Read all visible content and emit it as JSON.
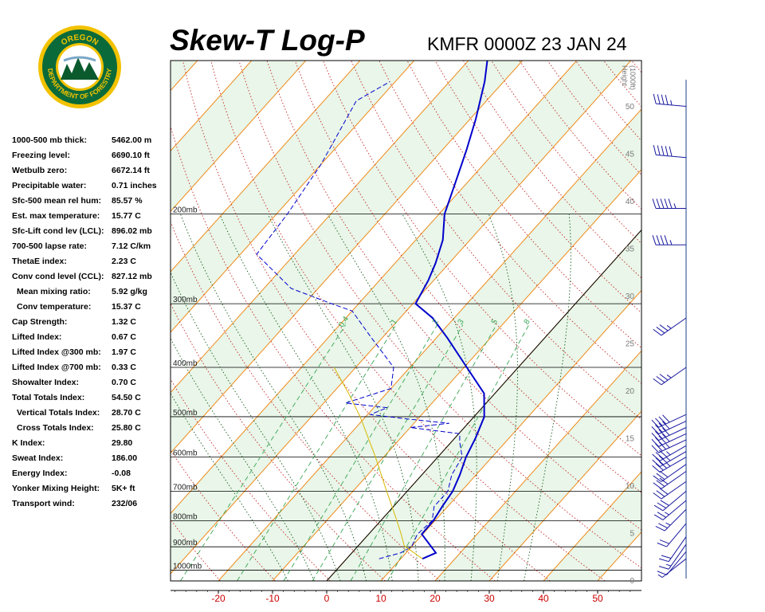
{
  "header": {
    "title": "Skew-T Log-P",
    "subtitle": "KMFR 0000Z 23 JAN 24"
  },
  "logo": {
    "text_top": "OREGON",
    "text_bottom": "DEPARTMENT OF FORESTRY",
    "colors": {
      "ring": "#0b6a3a",
      "gold": "#f2c200",
      "tree": "#0b5a2e"
    }
  },
  "indices": [
    {
      "label": "1000-500 mb thick:",
      "value": "5462.00 m",
      "indent": false
    },
    {
      "label": "Freezing level:",
      "value": "6690.10 ft",
      "indent": false
    },
    {
      "label": "Wetbulb zero:",
      "value": "6672.14 ft",
      "indent": false
    },
    {
      "label": "Precipitable water:",
      "value": "0.71 inches",
      "indent": false
    },
    {
      "label": "Sfc-500 mean rel hum:",
      "value": "85.57 %",
      "indent": false
    },
    {
      "label": "Est. max temperature:",
      "value": "15.77 C",
      "indent": false
    },
    {
      "label": "Sfc-Lift cond lev (LCL):",
      "value": "896.02 mb",
      "indent": false
    },
    {
      "label": "700-500 lapse rate:",
      "value": "7.12 C/km",
      "indent": false
    },
    {
      "label": "ThetaE index:",
      "value": "2.23 C",
      "indent": false
    },
    {
      "label": "Conv cond level (CCL):",
      "value": "827.12 mb",
      "indent": false
    },
    {
      "label": "Mean mixing ratio:",
      "value": "5.92 g/kg",
      "indent": true
    },
    {
      "label": "Conv temperature:",
      "value": "15.37 C",
      "indent": true
    },
    {
      "label": "Cap Strength:",
      "value": "1.32 C",
      "indent": false
    },
    {
      "label": "Lifted Index:",
      "value": "0.67 C",
      "indent": false
    },
    {
      "label": "Lifted Index @300 mb:",
      "value": "1.97 C",
      "indent": false
    },
    {
      "label": "Lifted Index @700 mb:",
      "value": "0.33 C",
      "indent": false
    },
    {
      "label": "Showalter Index:",
      "value": "0.70 C",
      "indent": false
    },
    {
      "label": "Total Totals Index:",
      "value": "54.50 C",
      "indent": false
    },
    {
      "label": "Vertical Totals Index:",
      "value": "28.70 C",
      "indent": true
    },
    {
      "label": "Cross Totals Index:",
      "value": "25.80 C",
      "indent": true
    },
    {
      "label": "K Index:",
      "value": "29.80",
      "indent": false
    },
    {
      "label": "Sweat Index:",
      "value": "186.00",
      "indent": false
    },
    {
      "label": "Energy Index:",
      "value": "-0.08",
      "indent": false
    },
    {
      "label": "Yonker Mixing Height:",
      "value": "5K+ ft",
      "indent": false
    },
    {
      "label": "Transport wind:",
      "value": "232/06",
      "indent": false
    }
  ],
  "chart_data": {
    "type": "line",
    "title": "Skew-T Log-P",
    "subtitle": "KMFR 0000Z 23 JAN 24",
    "x_axis": {
      "label": "",
      "ticks": [
        -20,
        -10,
        0,
        10,
        20,
        30,
        40,
        50
      ],
      "range": [
        -30,
        56
      ],
      "tick_color": "#cc0000"
    },
    "y_axis": {
      "label": "",
      "scale": "log",
      "range_mb": [
        1050,
        100
      ],
      "ticks": [
        1000,
        900,
        800,
        700,
        600,
        500,
        400,
        300,
        200
      ],
      "tick_labels": [
        "1000mb",
        "900mb",
        "800mb",
        "700mb",
        "600mb",
        "500mb",
        "400mb",
        "300mb",
        "200mb"
      ]
    },
    "height_axis": {
      "label": "Height (1000ft)",
      "label_lines": [
        "Height",
        "(1000ft)"
      ],
      "ticks": [
        0,
        5,
        10,
        15,
        20,
        25,
        30,
        35,
        40,
        45,
        50
      ],
      "tick_labels": [
        "0",
        "5",
        "10",
        "15",
        "20",
        "25",
        "30",
        "35",
        "40",
        "45",
        "50"
      ]
    },
    "mixing_ratio_labels": [
      "0.4",
      "1",
      "2",
      "3",
      "5",
      "8"
    ],
    "mixing_ratio_values": [
      0.4,
      1,
      2,
      3,
      5,
      8
    ],
    "background": {
      "isotherm_interval_c": 10,
      "dry_adiabats_theta_k": [
        250,
        260,
        270,
        280,
        290,
        300,
        310,
        320,
        330,
        340,
        350,
        360,
        370,
        380,
        390,
        400,
        410,
        420,
        430,
        440,
        450,
        460,
        470
      ],
      "moist_adiabats_theta_w_c": [
        -10,
        -5,
        0,
        5,
        10,
        15,
        20,
        25,
        30,
        35
      ],
      "freezing_isotherm_c": 0
    },
    "series": [
      {
        "role": "temperature",
        "color": "#0000cc",
        "style": "solid",
        "points": [
          [
            950,
            14.0
          ],
          [
            925,
            15.5
          ],
          [
            850,
            9.8
          ],
          [
            800,
            9.7
          ],
          [
            750,
            9.0
          ],
          [
            700,
            8.4
          ],
          [
            650,
            7.0
          ],
          [
            600,
            5.2
          ],
          [
            550,
            3.8
          ],
          [
            500,
            1.9
          ],
          [
            450,
            -2.0
          ],
          [
            400,
            -9.5
          ],
          [
            350,
            -18.0
          ],
          [
            320,
            -24.0
          ],
          [
            300,
            -29.5
          ],
          [
            270,
            -31.0
          ],
          [
            250,
            -32.5
          ],
          [
            225,
            -35.0
          ],
          [
            200,
            -39.0
          ],
          [
            175,
            -42.0
          ],
          [
            150,
            -45.5
          ],
          [
            130,
            -49.0
          ],
          [
            110,
            -53.5
          ],
          [
            100,
            -56.5
          ]
        ]
      },
      {
        "role": "dewpoint",
        "color": "#0000cc",
        "style": "dashed",
        "points": [
          [
            950,
            6.0
          ],
          [
            925,
            9.0
          ],
          [
            900,
            10.0
          ],
          [
            850,
            9.0
          ],
          [
            800,
            9.5
          ],
          [
            750,
            7.5
          ],
          [
            700,
            7.5
          ],
          [
            650,
            5.5
          ],
          [
            600,
            4.5
          ],
          [
            560,
            1.5
          ],
          [
            540,
            0.2
          ],
          [
            525,
            -10.0
          ],
          [
            515,
            -3.5
          ],
          [
            505,
            -12.0
          ],
          [
            495,
            -19.5
          ],
          [
            480,
            -17.5
          ],
          [
            470,
            -26.0
          ],
          [
            440,
            -20.0
          ],
          [
            400,
            -23.0
          ],
          [
            350,
            -32.0
          ],
          [
            310,
            -40.0
          ],
          [
            300,
            -45.0
          ],
          [
            280,
            -55.0
          ],
          [
            240,
            -67.0
          ],
          [
            200,
            -68.0
          ],
          [
            160,
            -70.0
          ],
          [
            120,
            -74.0
          ],
          [
            110,
            -71.0
          ]
        ]
      },
      {
        "role": "parcel",
        "color": "#d8b800",
        "style": "solid",
        "points": [
          [
            950,
            14.0
          ],
          [
            896,
            8.5
          ],
          [
            850,
            6.0
          ],
          [
            800,
            3.0
          ],
          [
            700,
            -3.8
          ],
          [
            600,
            -11.5
          ],
          [
            500,
            -21.0
          ],
          [
            450,
            -27.0
          ],
          [
            400,
            -34.0
          ]
        ]
      }
    ],
    "wind_barbs": [
      {
        "p": 950,
        "dir": 232,
        "spd": 6
      },
      {
        "p": 920,
        "dir": 220,
        "spd": 10
      },
      {
        "p": 890,
        "dir": 215,
        "spd": 15
      },
      {
        "p": 860,
        "dir": 215,
        "spd": 20
      },
      {
        "p": 810,
        "dir": 220,
        "spd": 20
      },
      {
        "p": 760,
        "dir": 225,
        "spd": 25
      },
      {
        "p": 730,
        "dir": 230,
        "spd": 25
      },
      {
        "p": 700,
        "dir": 230,
        "spd": 30
      },
      {
        "p": 670,
        "dir": 235,
        "spd": 30
      },
      {
        "p": 640,
        "dir": 235,
        "spd": 30
      },
      {
        "p": 620,
        "dir": 235,
        "spd": 30
      },
      {
        "p": 600,
        "dir": 240,
        "spd": 35
      },
      {
        "p": 585,
        "dir": 240,
        "spd": 35
      },
      {
        "p": 570,
        "dir": 240,
        "spd": 35
      },
      {
        "p": 555,
        "dir": 245,
        "spd": 35
      },
      {
        "p": 540,
        "dir": 245,
        "spd": 40
      },
      {
        "p": 525,
        "dir": 245,
        "spd": 40
      },
      {
        "p": 510,
        "dir": 245,
        "spd": 40
      },
      {
        "p": 495,
        "dir": 245,
        "spd": 40
      },
      {
        "p": 400,
        "dir": 235,
        "spd": 35
      },
      {
        "p": 320,
        "dir": 235,
        "spd": 35
      },
      {
        "p": 230,
        "dir": 270,
        "spd": 45
      },
      {
        "p": 195,
        "dir": 270,
        "spd": 55
      },
      {
        "p": 155,
        "dir": 275,
        "spd": 50
      },
      {
        "p": 123,
        "dir": 275,
        "spd": 45
      }
    ]
  }
}
